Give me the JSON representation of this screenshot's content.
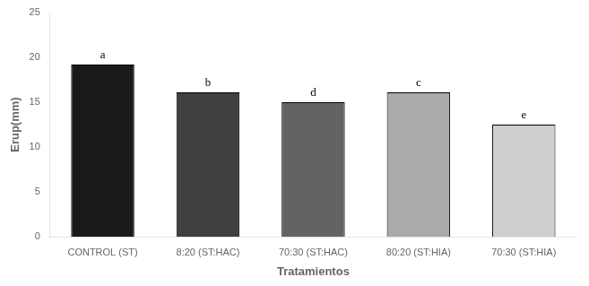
{
  "chart_data": {
    "type": "bar",
    "categories": [
      "CONTROL (ST)",
      "8:20 (ST:HAC)",
      "70:30 (ST:HAC)",
      "80:20 (ST:HIA)",
      "70:30 (ST:HIA)"
    ],
    "values": [
      19.2,
      16.1,
      15.0,
      16.1,
      12.5
    ],
    "colors": [
      "#1a1a1a",
      "#404040",
      "#636363",
      "#aaaaaa",
      "#cecece"
    ],
    "annotations": [
      "a",
      "b",
      "d",
      "c",
      "e"
    ],
    "xlabel": "Tratamientos",
    "ylabel": "Erup(mm)",
    "ylim": [
      0,
      25
    ],
    "yticks": [
      0,
      5,
      10,
      15,
      20,
      25
    ],
    "grid": false
  }
}
